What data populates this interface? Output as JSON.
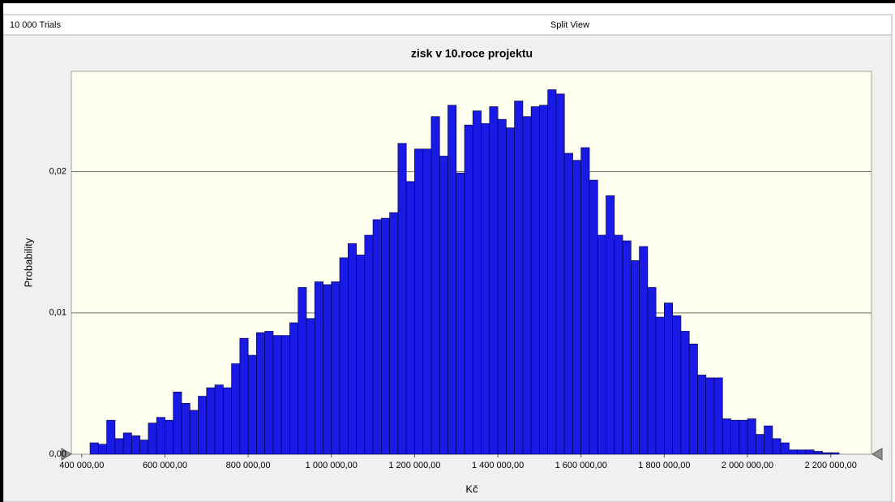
{
  "header": {
    "trials": "10 000 Trials",
    "view": "Split View"
  },
  "chart_data": {
    "type": "histogram",
    "title": "zisk v 10.roce projektu",
    "x_label": "Kč",
    "y_label": "Probability",
    "bins": [
      420000,
      440000,
      460000,
      480000,
      500000,
      520000,
      540000,
      560000,
      580000,
      600000,
      620000,
      640000,
      660000,
      680000,
      700000,
      720000,
      740000,
      760000,
      780000,
      800000,
      820000,
      840000,
      860000,
      880000,
      900000,
      920000,
      940000,
      960000,
      980000,
      1000000,
      1020000,
      1040000,
      1060000,
      1080000,
      1100000,
      1120000,
      1140000,
      1160000,
      1180000,
      1200000,
      1220000,
      1240000,
      1260000,
      1280000,
      1300000,
      1320000,
      1340000,
      1360000,
      1380000,
      1400000,
      1420000,
      1440000,
      1460000,
      1480000,
      1500000,
      1520000,
      1540000,
      1560000,
      1580000,
      1600000,
      1620000,
      1640000,
      1660000,
      1680000,
      1700000,
      1720000,
      1740000,
      1760000,
      1780000,
      1800000,
      1820000,
      1840000,
      1860000,
      1880000,
      1900000,
      1920000,
      1940000,
      1960000,
      1980000,
      2000000,
      2020000,
      2040000,
      2060000,
      2080000,
      2100000,
      2120000,
      2140000,
      2160000,
      2180000,
      2200000,
      2220000
    ],
    "values": [
      0.0008,
      0.0007,
      0.0024,
      0.0011,
      0.0015,
      0.0013,
      0.001,
      0.0022,
      0.0026,
      0.0024,
      0.0044,
      0.0036,
      0.0031,
      0.0041,
      0.0047,
      0.0049,
      0.0047,
      0.0064,
      0.0082,
      0.007,
      0.0086,
      0.0087,
      0.0084,
      0.0084,
      0.0093,
      0.0118,
      0.0096,
      0.0122,
      0.012,
      0.0122,
      0.0139,
      0.0149,
      0.0141,
      0.0155,
      0.0166,
      0.0167,
      0.0171,
      0.022,
      0.0193,
      0.0216,
      0.0216,
      0.0239,
      0.0211,
      0.0247,
      0.0199,
      0.0233,
      0.0243,
      0.0234,
      0.0246,
      0.0237,
      0.0231,
      0.025,
      0.0239,
      0.0246,
      0.0247,
      0.0258,
      0.0255,
      0.0213,
      0.0208,
      0.0217,
      0.0194,
      0.0155,
      0.0183,
      0.0155,
      0.0151,
      0.0137,
      0.0147,
      0.0118,
      0.0097,
      0.0107,
      0.0098,
      0.0087,
      0.0078,
      0.0056,
      0.0054,
      0.0054,
      0.0025,
      0.0024,
      0.0024,
      0.0025,
      0.0014,
      0.002,
      0.0011,
      0.0008,
      0.0003,
      0.0003,
      0.0003,
      0.0002,
      0.0001,
      0.0001
    ],
    "color": "#1a1ae6",
    "xlim": [
      375000,
      2298000
    ],
    "xticks": [
      {
        "value": 400000,
        "label": "400 000,00"
      },
      {
        "value": 600000,
        "label": "600 000,00"
      },
      {
        "value": 800000,
        "label": "800 000,00"
      },
      {
        "value": 1000000,
        "label": "1 000 000,00"
      },
      {
        "value": 1200000,
        "label": "1 200 000,00"
      },
      {
        "value": 1400000,
        "label": "1 400 000,00"
      },
      {
        "value": 1600000,
        "label": "1 600 000,00"
      },
      {
        "value": 1800000,
        "label": "1 800 000,00"
      },
      {
        "value": 2000000,
        "label": "2 000 000,00"
      },
      {
        "value": 2200000,
        "label": "2 200 000,00"
      }
    ],
    "ylim": [
      0,
      0.0271
    ],
    "yticks": [
      {
        "value": 0,
        "label": "0,00"
      },
      {
        "value": 0.01,
        "label": "0,01"
      },
      {
        "value": 0.02,
        "label": "0,02"
      }
    ],
    "grid": true
  }
}
